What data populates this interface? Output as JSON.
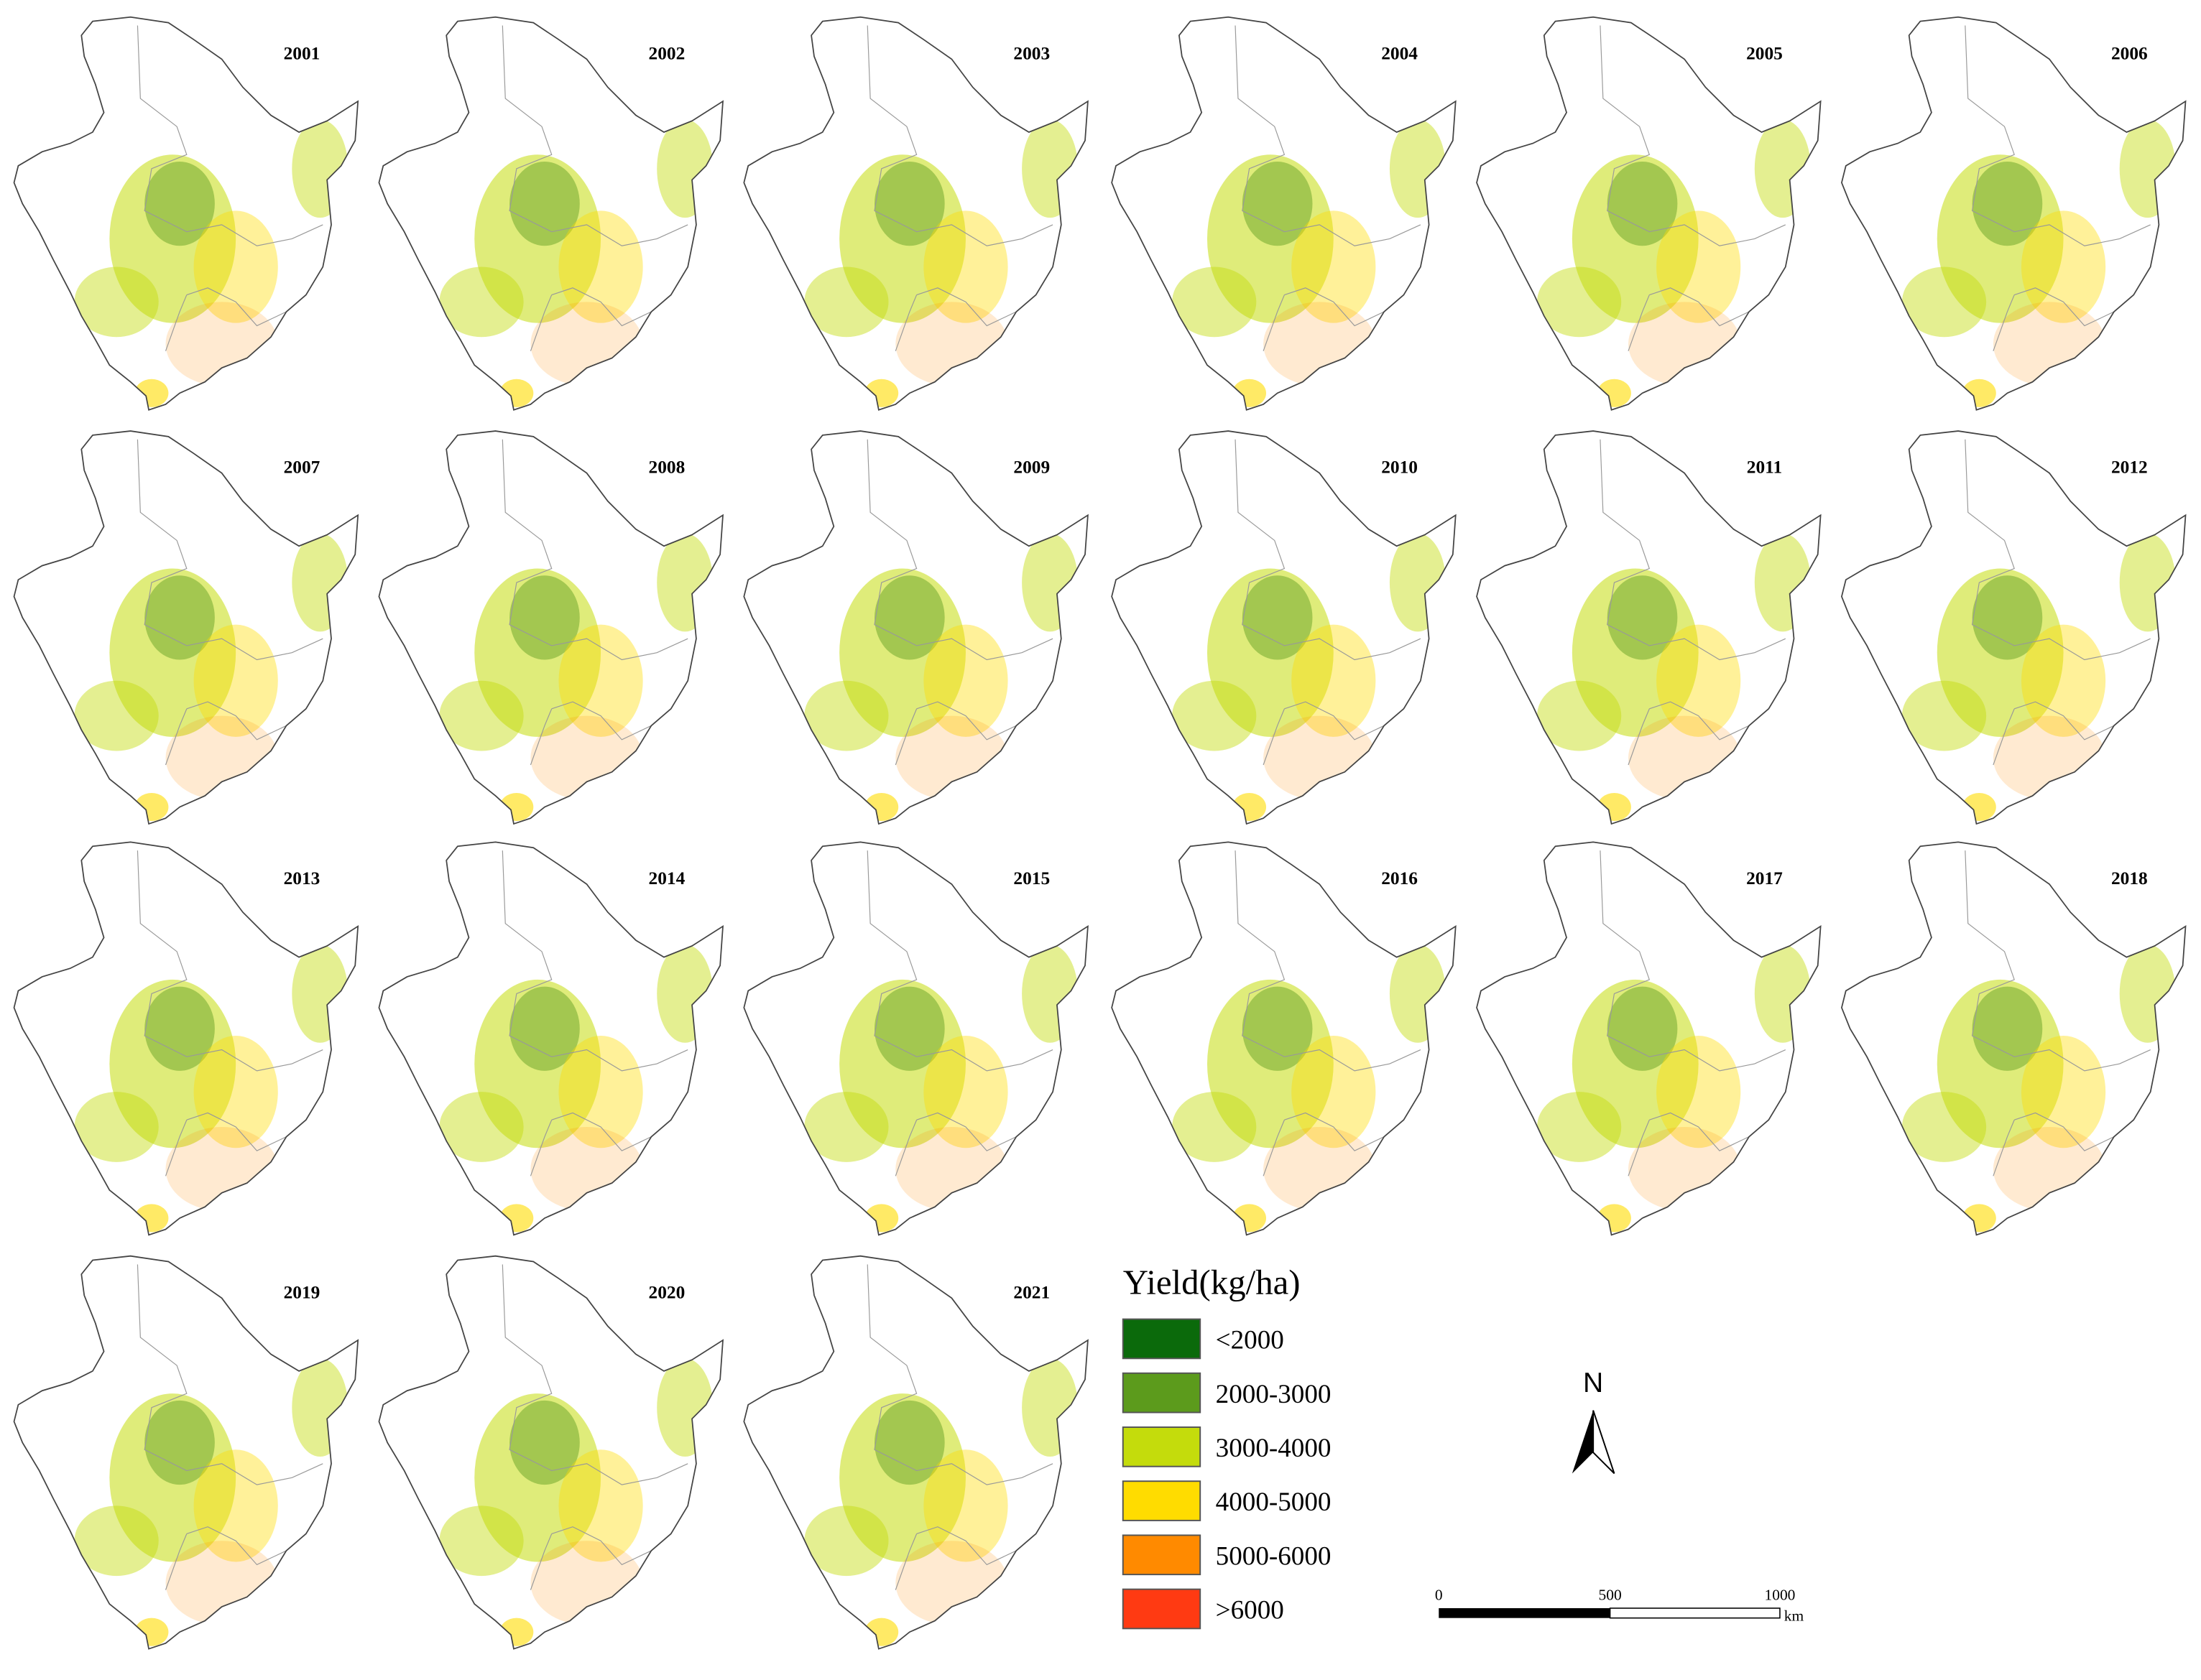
{
  "years": [
    "2001",
    "2002",
    "2003",
    "2004",
    "2005",
    "2006",
    "2007",
    "2008",
    "2009",
    "2010",
    "2011",
    "2012",
    "2013",
    "2014",
    "2015",
    "2016",
    "2017",
    "2018",
    "2019",
    "2020",
    "2021"
  ],
  "legend": {
    "title": "Yield(kg/ha)",
    "items": [
      {
        "label": "<2000",
        "color": "#0b6a0b"
      },
      {
        "label": "2000-3000",
        "color": "#5c9b1c"
      },
      {
        "label": "3000-4000",
        "color": "#c4dc0c"
      },
      {
        "label": "4000-5000",
        "color": "#ffdc00"
      },
      {
        "label": "5000-6000",
        "color": "#ff8a00"
      },
      {
        "label": ">6000",
        "color": "#ff3a12"
      }
    ]
  },
  "north_arrow": "N",
  "scale_bar": {
    "labels": [
      "0",
      "500",
      "1000"
    ],
    "unit": "km"
  }
}
